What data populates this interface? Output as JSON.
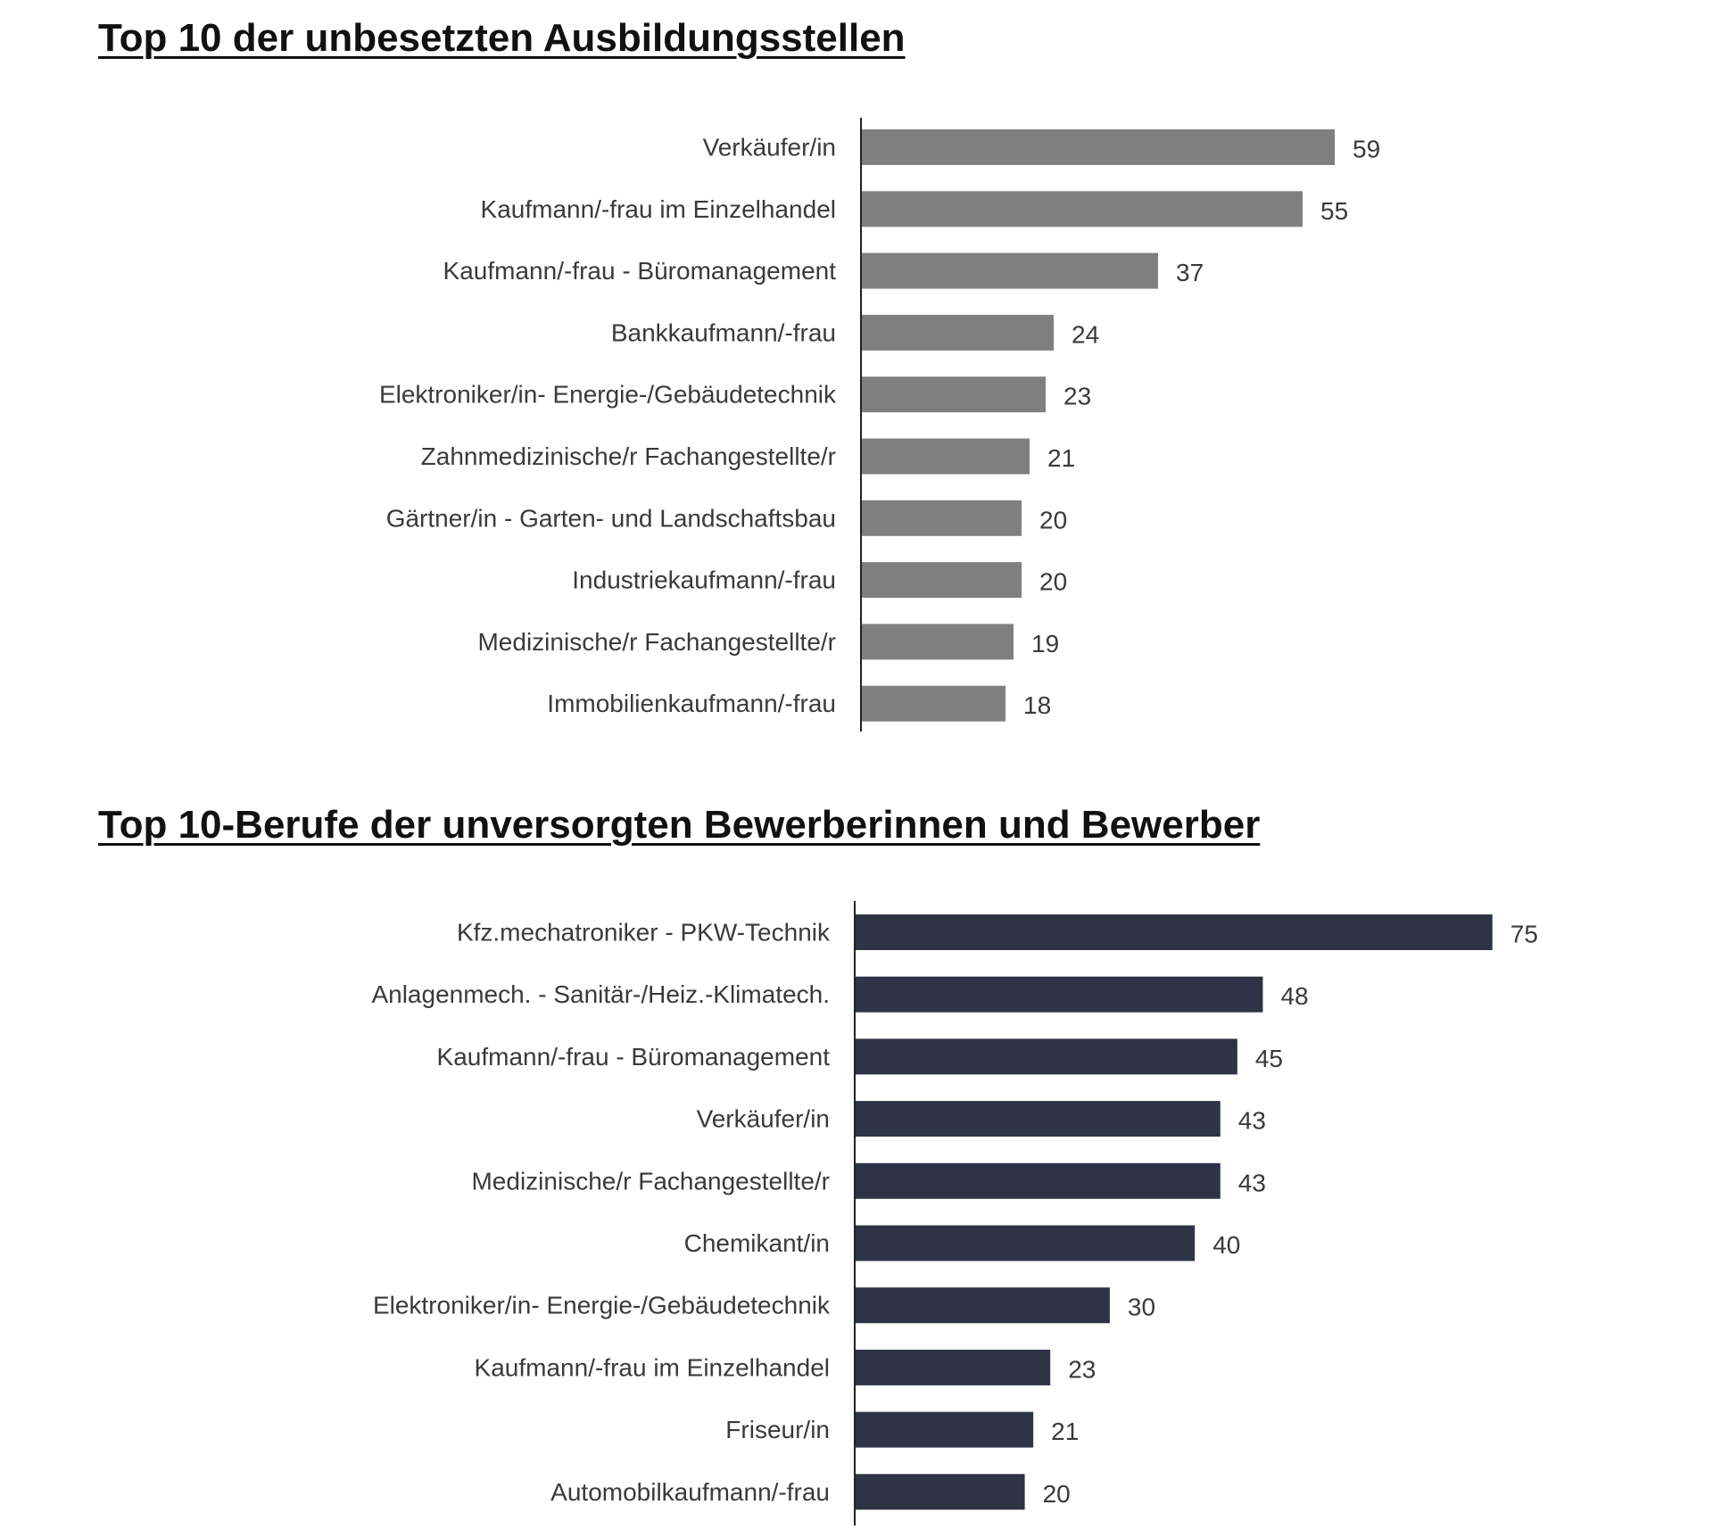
{
  "chart_data": [
    {
      "type": "bar",
      "orientation": "horizontal",
      "title": "Top 10 der unbesetzten Ausbildungsstellen",
      "color": "#7f7f7f",
      "categories": [
        "Verkäufer/in",
        "Kaufmann/-frau im Einzelhandel",
        "Kaufmann/-frau - Büromanagement",
        "Bankkaufmann/-frau",
        "Elektroniker/in- Energie-/Gebäudetechnik",
        "Zahnmedizinische/r Fachangestellte/r",
        "Gärtner/in - Garten- und Landschaftsbau",
        "Industriekaufmann/-frau",
        "Medizinische/r Fachangestellte/r",
        "Immobilienkaufmann/-frau"
      ],
      "values": [
        59,
        55,
        37,
        24,
        23,
        21,
        20,
        20,
        19,
        18
      ],
      "xlim": [
        0,
        75
      ]
    },
    {
      "type": "bar",
      "orientation": "horizontal",
      "title": "Top 10-Berufe der unversorgten Bewerberinnen und Bewerber",
      "color": "#2e3445",
      "categories": [
        "Kfz.mechatroniker - PKW-Technik",
        "Anlagenmech. - Sanitär-/Heiz.-Klimatech.",
        "Kaufmann/-frau - Büromanagement",
        "Verkäufer/in",
        "Medizinische/r Fachangestellte/r",
        "Chemikant/in",
        "Elektroniker/in- Energie-/Gebäudetechnik",
        "Kaufmann/-frau im Einzelhandel",
        "Friseur/in",
        "Automobilkaufmann/-frau"
      ],
      "values": [
        75,
        48,
        45,
        43,
        43,
        40,
        30,
        23,
        21,
        20
      ],
      "xlim": [
        0,
        75
      ]
    }
  ]
}
